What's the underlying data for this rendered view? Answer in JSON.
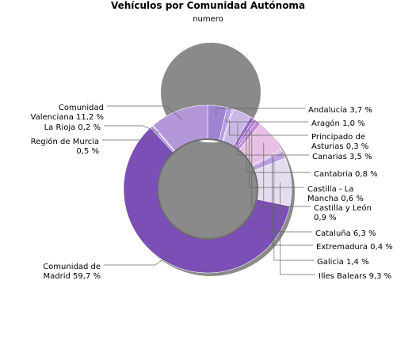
{
  "chart_data": {
    "type": "pie",
    "title": "Vehículos por Comunidad Autónoma",
    "subtitle": "numero",
    "slices": [
      {
        "label": "Andalucía 3,7 %",
        "value": 3.7,
        "color": "#9f84d4"
      },
      {
        "label": "Aragón 1,0 %",
        "value": 1.0,
        "color": "#b29ee0"
      },
      {
        "label": "Principado de Asturias 0,3 %",
        "value": 0.3,
        "color": "#c3b4e6"
      },
      {
        "label": "Canarias 3,5 %",
        "value": 3.5,
        "color": "#c9b8e6"
      },
      {
        "label": "Cantabria 0,8 %",
        "value": 0.8,
        "color": "#9c6cc8"
      },
      {
        "label": "Castilla - La Mancha 0,6 %",
        "value": 0.6,
        "color": "#b07ad0"
      },
      {
        "label": "Castilla y León 0,9 %",
        "value": 0.9,
        "color": "#c28cd6"
      },
      {
        "label": "Cataluña 6,3 %",
        "value": 6.3,
        "color": "#e7c0e3"
      },
      {
        "label": "Extremadura 0,4 %",
        "value": 0.4,
        "color": "#d6b6e4"
      },
      {
        "label": "Galicia 1,4 %",
        "value": 1.4,
        "color": "#b99ee0"
      },
      {
        "label": "Illes Balears 9,3 %",
        "value": 9.3,
        "color": "#e6dcef"
      },
      {
        "label": "Comunidad de Madrid 59,7 %",
        "value": 59.7,
        "color": "#7b4fb5"
      },
      {
        "label": "Región de Murcia 0,5 %",
        "value": 0.5,
        "color": "#a98fd8"
      },
      {
        "label": "La Rioja 0,2 %",
        "value": 0.2,
        "color": "#c8b6ea"
      },
      {
        "label": "Comunidad Valenciana 11,2 %",
        "value": 11.2,
        "color": "#b397d9"
      }
    ]
  }
}
